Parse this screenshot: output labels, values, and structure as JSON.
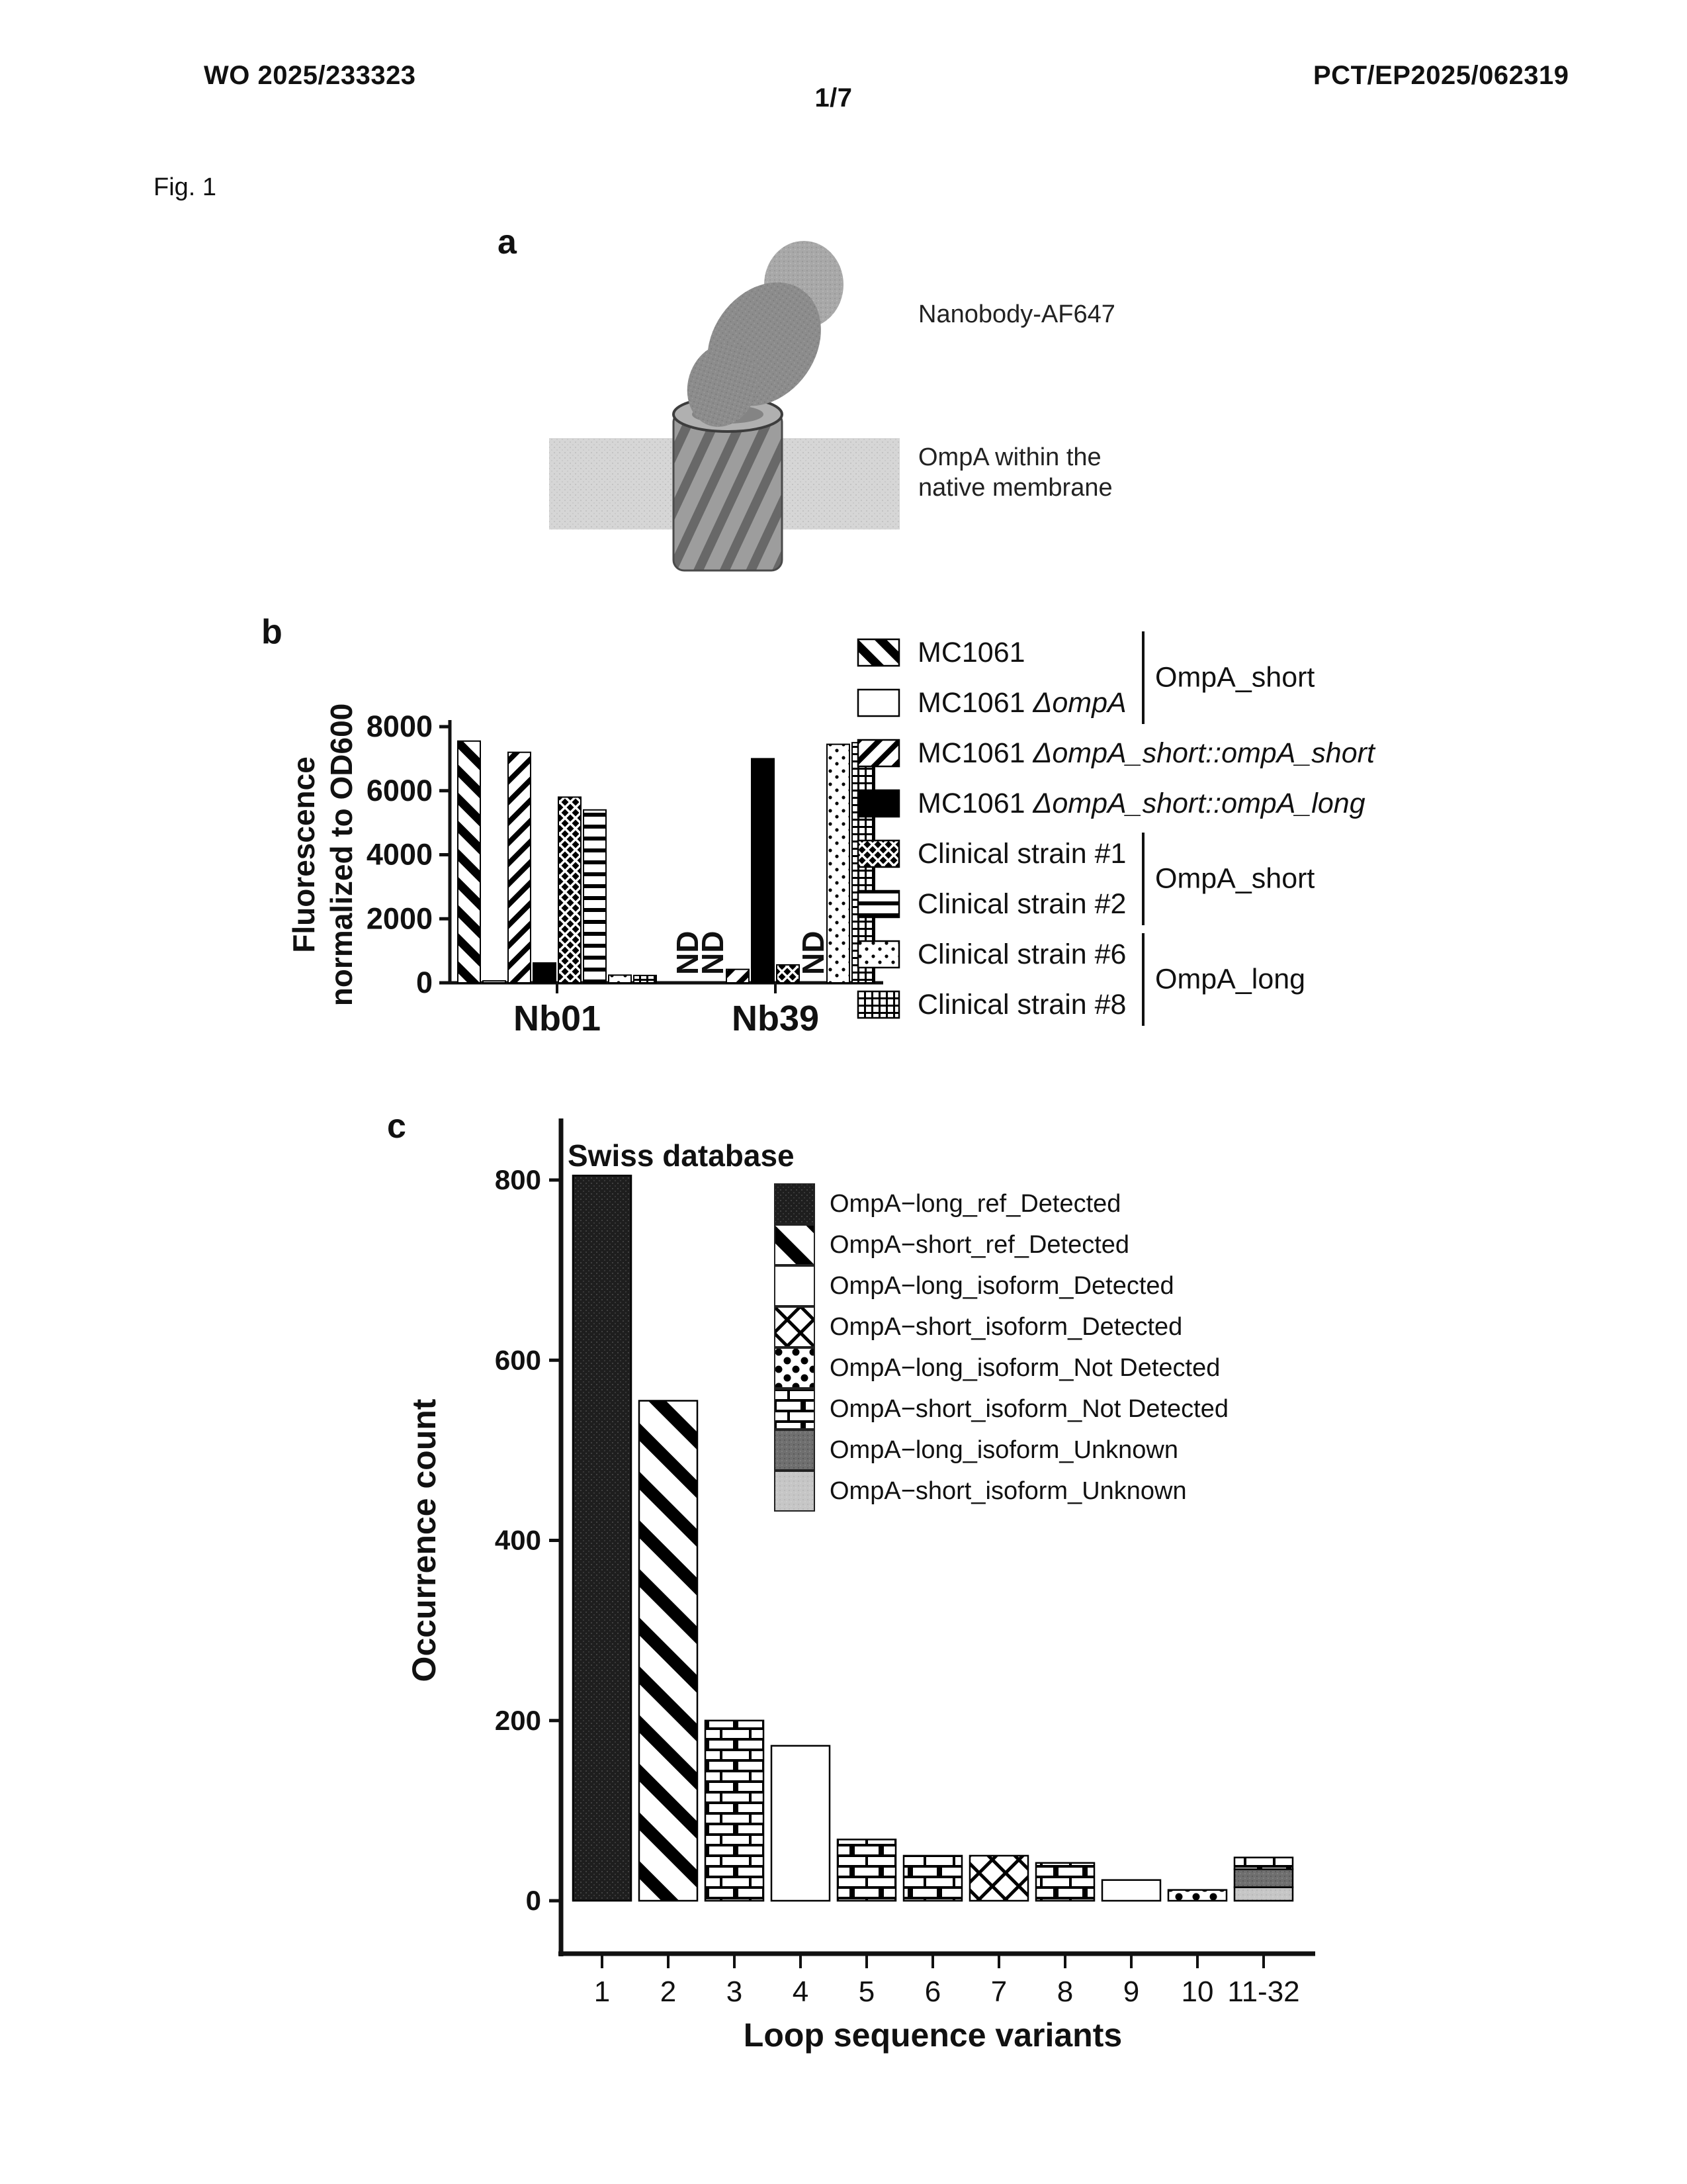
{
  "header": {
    "publication_number": "WO 2025/233323",
    "application_number": "PCT/EP2025/062319",
    "sheet_indicator": "1/7",
    "figure_label": "Fig. 1"
  },
  "panel_a": {
    "panel_letter": "a",
    "nanobody_label": "Nanobody-AF647",
    "membrane_label_line1": "OmpA within the",
    "membrane_label_line2": "native membrane"
  },
  "panel_b": {
    "panel_letter": "b"
  },
  "panel_c": {
    "panel_letter": "c"
  },
  "chart_data": [
    {
      "type": "bar",
      "panel": "b",
      "ylabel_line1": "Fluorescence",
      "ylabel_line2": "normalized to OD600",
      "ylim": [
        0,
        8000
      ],
      "yticks": [
        0,
        2000,
        4000,
        6000,
        8000
      ],
      "nd_text": "ND",
      "groups": [
        {
          "label": "Nb01",
          "values": [
            7550,
            60,
            7200,
            620,
            5800,
            5400,
            240,
            230
          ]
        },
        {
          "label": "Nb39",
          "values": [
            "ND",
            "ND",
            420,
            7000,
            560,
            "ND",
            7450,
            7500
          ]
        }
      ],
      "series_patterns": [
        "stripe-bw",
        "open",
        "slash",
        "solid",
        "diamond",
        "hlines",
        "dots-sparse",
        "grid-fine"
      ],
      "legend": [
        {
          "roman": "MC1061",
          "italic": "",
          "pattern": "stripe-bw"
        },
        {
          "roman": "MC1061 ",
          "italic": "ΔompA",
          "pattern": "open"
        },
        {
          "roman": "MC1061 ",
          "italic": "ΔompA_short::ompA_short",
          "pattern": "slash"
        },
        {
          "roman": "MC1061 ",
          "italic": "ΔompA_short::ompA_long",
          "pattern": "solid"
        },
        {
          "roman": "Clinical strain #1",
          "italic": "",
          "pattern": "diamond"
        },
        {
          "roman": "Clinical strain #2",
          "italic": "",
          "pattern": "hlines"
        },
        {
          "roman": "Clinical strain #6",
          "italic": "",
          "pattern": "dots-sparse"
        },
        {
          "roman": "Clinical strain #8",
          "italic": "",
          "pattern": "grid-fine"
        }
      ],
      "legend_brackets": [
        {
          "rows": [
            0,
            1
          ],
          "label": "OmpA_short"
        },
        {
          "rows": [
            4,
            5
          ],
          "label": "OmpA_short"
        },
        {
          "rows": [
            6,
            7
          ],
          "label": "OmpA_long"
        }
      ]
    },
    {
      "type": "bar",
      "panel": "c",
      "title": "Swiss database",
      "xlabel": "Loop sequence variants",
      "ylabel": "Occurrence count",
      "ylim": [
        0,
        820
      ],
      "yticks": [
        0,
        200,
        400,
        600,
        800
      ],
      "categories": [
        "1",
        "2",
        "3",
        "4",
        "5",
        "6",
        "7",
        "8",
        "9",
        "10",
        "11-32"
      ],
      "bars": [
        {
          "category": "1",
          "segments": [
            {
              "pattern": "dark-stipple",
              "value": 805
            }
          ]
        },
        {
          "category": "2",
          "segments": [
            {
              "pattern": "backslash-thick",
              "value": 555
            }
          ]
        },
        {
          "category": "3",
          "segments": [
            {
              "pattern": "brick",
              "value": 200
            }
          ]
        },
        {
          "category": "4",
          "segments": [
            {
              "pattern": "open",
              "value": 172
            }
          ]
        },
        {
          "category": "5",
          "segments": [
            {
              "pattern": "brick",
              "value": 68
            }
          ]
        },
        {
          "category": "6",
          "segments": [
            {
              "pattern": "brick",
              "value": 50
            }
          ]
        },
        {
          "category": "7",
          "segments": [
            {
              "pattern": "xcross",
              "value": 50
            }
          ]
        },
        {
          "category": "8",
          "segments": [
            {
              "pattern": "brick",
              "value": 42
            }
          ]
        },
        {
          "category": "9",
          "segments": [
            {
              "pattern": "open",
              "value": 23
            }
          ]
        },
        {
          "category": "10",
          "segments": [
            {
              "pattern": "polka",
              "value": 12
            }
          ]
        },
        {
          "category": "11-32",
          "segments": [
            {
              "pattern": "gray-light",
              "value": 15
            },
            {
              "pattern": "gray-dark",
              "value": 20
            },
            {
              "pattern": "brick",
              "value": 13
            }
          ]
        }
      ],
      "legend": [
        {
          "label": "OmpA−long_ref_Detected",
          "pattern": "dark-stipple"
        },
        {
          "label": "OmpA−short_ref_Detected",
          "pattern": "backslash-thick"
        },
        {
          "label": "OmpA−long_isoform_Detected",
          "pattern": "open"
        },
        {
          "label": "OmpA−short_isoform_Detected",
          "pattern": "xcross"
        },
        {
          "label": "OmpA−long_isoform_Not Detected",
          "pattern": "polka"
        },
        {
          "label": "OmpA−short_isoform_Not Detected",
          "pattern": "brick"
        },
        {
          "label": "OmpA−long_isoform_Unknown",
          "pattern": "gray-dark"
        },
        {
          "label": "OmpA−short_isoform_Unknown",
          "pattern": "gray-light"
        }
      ]
    }
  ]
}
